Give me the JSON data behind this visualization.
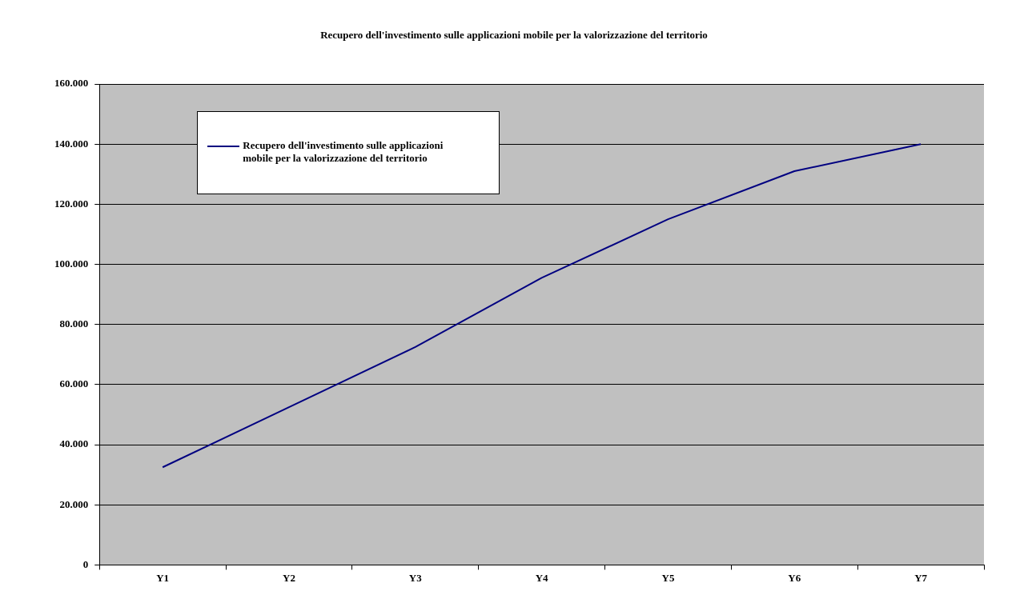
{
  "chart_data": {
    "type": "line",
    "title": "Recupero dell'investimento sulle applicazioni mobile per la valorizzazione del territorio",
    "categories": [
      "Y1",
      "Y2",
      "Y3",
      "Y4",
      "Y5",
      "Y6",
      "Y7"
    ],
    "series": [
      {
        "name": "Recupero dell'investimento sulle applicazioni mobile per la valorizzazione del territorio",
        "color": "#000080",
        "values": [
          32500,
          52500,
          72500,
          95500,
          115000,
          131000,
          140000
        ]
      }
    ],
    "ylim": [
      0,
      160000
    ],
    "yticks": [
      0,
      {
        "value": 20000,
        "label": "20.000"
      },
      {
        "value": 40000,
        "label": "40.000"
      },
      {
        "value": 60000,
        "label": "60.000"
      },
      {
        "value": 80000,
        "label": "80.000"
      },
      {
        "value": 100000,
        "label": "100.000"
      },
      {
        "value": 120000,
        "label": "120.000"
      },
      {
        "value": 140000,
        "label": "140.000"
      },
      {
        "value": 160000,
        "label": "160.000"
      }
    ],
    "grid": "y",
    "legend": "top left",
    "marker": "none",
    "line_style": "solid"
  }
}
